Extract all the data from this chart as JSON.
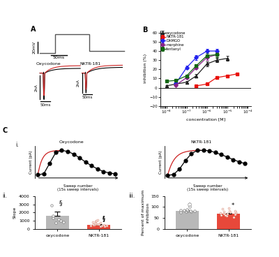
{
  "dose_response": {
    "concentrations": [
      1e-08,
      3e-08,
      1e-07,
      3e-07,
      1e-06,
      3e-06,
      1e-05,
      3e-05
    ],
    "oxycodone": {
      "y": [
        2,
        4,
        6,
        13,
        26,
        30,
        32,
        null
      ],
      "err": [
        1,
        1.0,
        1.5,
        2,
        2.5,
        2.5,
        2.5,
        null
      ]
    },
    "nktr181": {
      "y": [
        null,
        null,
        null,
        2,
        4,
        11,
        13,
        15
      ],
      "err": [
        null,
        null,
        null,
        1,
        1.2,
        1.5,
        1.5,
        1.5
      ]
    },
    "damgo": {
      "y": [
        null,
        5,
        22,
        33,
        40,
        40,
        null,
        null
      ],
      "err": [
        null,
        1.5,
        2,
        2.5,
        2.5,
        2.5,
        null,
        null
      ]
    },
    "morphine": {
      "y": [
        null,
        3,
        11,
        22,
        33,
        36,
        null,
        null
      ],
      "err": [
        null,
        1.2,
        1.5,
        2,
        2.5,
        2.5,
        null,
        null
      ]
    },
    "fentanyl": {
      "y": [
        7,
        8,
        13,
        24,
        35,
        36,
        null,
        null
      ],
      "err": [
        0.8,
        0.8,
        1.2,
        1.5,
        2.5,
        2.5,
        null,
        null
      ]
    }
  },
  "slope_bar": {
    "categories": [
      "oxycodone",
      "NKTR-181"
    ],
    "values": [
      1550,
      490
    ],
    "errors": [
      580,
      80
    ],
    "colors": [
      "#b8b8b8",
      "#e8483a"
    ],
    "ylabel": "Slope",
    "ylim": [
      0,
      4000
    ],
    "yticks": [
      0,
      1000,
      2000,
      3000,
      4000
    ],
    "oxycodone_dots": [
      700,
      850,
      1000,
      1150,
      1300,
      1600,
      2850
    ],
    "nktr181_dots": [
      300,
      330,
      360,
      390,
      420,
      450,
      470,
      490,
      520,
      540,
      570,
      600,
      640,
      700,
      800,
      900,
      1000,
      1080
    ]
  },
  "pct_inhibition_bar": {
    "categories": [
      "oxycodone",
      "NKTR-181"
    ],
    "values": [
      83,
      68
    ],
    "errors": [
      3,
      4
    ],
    "colors": [
      "#b8b8b8",
      "#e8483a"
    ],
    "ylabel": "Percent of maximum\ninhibition",
    "ylim": [
      0,
      150
    ],
    "yticks": [
      0,
      50,
      100,
      150
    ],
    "oxycodone_dots": [
      76,
      79,
      80,
      81,
      82,
      83,
      84,
      85,
      86,
      87,
      101
    ],
    "nktr181_dots": [
      54,
      58,
      62,
      64,
      66,
      68,
      70,
      71,
      73,
      75,
      77,
      79,
      81,
      83,
      91,
      96
    ]
  }
}
